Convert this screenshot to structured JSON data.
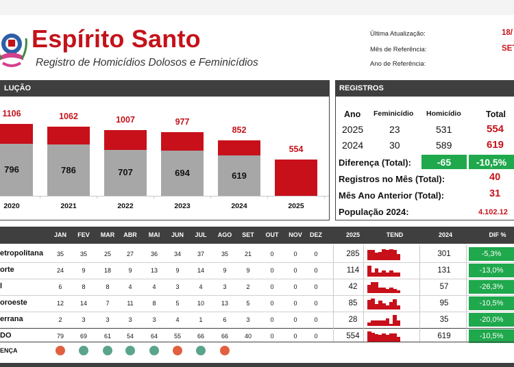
{
  "header": {
    "title": "Espírito Santo",
    "subtitle": "Registro de Homicídios Dolosos e Feminicídios",
    "meta": [
      {
        "label": "Última Atualização:",
        "value": "18/"
      },
      {
        "label": "Mês de Referência:",
        "value": "SET"
      },
      {
        "label": "Ano de Referência:",
        "value": ""
      }
    ]
  },
  "evolution": {
    "panel_title": "LUÇÃO",
    "chart_data": {
      "type": "bar",
      "categories": [
        "2020",
        "2021",
        "2022",
        "2023",
        "2024",
        "2025"
      ],
      "series": [
        {
          "name": "",
          "values": [
            796,
            786,
            707,
            694,
            619,
            null
          ]
        },
        {
          "name": "",
          "values": [
            310,
            276,
            300,
            283,
            233,
            554
          ]
        }
      ],
      "totals": [
        "1106",
        "1062",
        "1007",
        "977",
        "852",
        "554"
      ],
      "inner_labels": [
        "796",
        "786",
        "707",
        "694",
        "619",
        ""
      ],
      "ylim": [
        0,
        1150
      ],
      "colors": {
        "lower": "#a7a7a7",
        "upper": "#c8101a"
      }
    }
  },
  "registros": {
    "panel_title": "REGISTROS",
    "headers": [
      "Ano",
      "Feminicídio",
      "Homicídio",
      "Total"
    ],
    "rows": [
      {
        "ano": "2025",
        "fem": "23",
        "hom": "531",
        "total": "554"
      },
      {
        "ano": "2024",
        "fem": "30",
        "hom": "589",
        "total": "619"
      }
    ],
    "diferenca_label": "Diferença (Total):",
    "diferenca_abs": "-65",
    "diferenca_pct": "-10,5%",
    "mes_label": "Registros no Mês (Total):",
    "mes_value": "40",
    "mes_ant_label": "Mês Ano Anterior (Total):",
    "mes_ant_value": "31",
    "pop_label": "População 2024:",
    "pop_value": "4.102.12"
  },
  "table": {
    "months": [
      "JAN",
      "FEV",
      "MAR",
      "ABR",
      "MAI",
      "JUN",
      "JUL",
      "AGO",
      "SET",
      "OUT",
      "NOV",
      "DEZ"
    ],
    "col_2025": "2025",
    "col_tend": "TEND",
    "col_2024": "2024",
    "col_dif": "DIF %",
    "rows": [
      {
        "region": "etropolitana",
        "values": [
          "35",
          "35",
          "25",
          "27",
          "36",
          "34",
          "37",
          "35",
          "21",
          "0",
          "0",
          "0"
        ],
        "y2025": "285",
        "y2024": "301",
        "dif": "-5,3%",
        "spark": [
          35,
          35,
          25,
          27,
          36,
          34,
          37,
          35,
          21
        ]
      },
      {
        "region": "orte",
        "values": [
          "24",
          "9",
          "18",
          "9",
          "13",
          "9",
          "14",
          "9",
          "9",
          "0",
          "0",
          "0"
        ],
        "y2025": "114",
        "y2024": "131",
        "dif": "-13,0%",
        "spark": [
          24,
          9,
          18,
          9,
          13,
          9,
          14,
          9,
          9
        ]
      },
      {
        "region": "l",
        "values": [
          "6",
          "8",
          "8",
          "4",
          "4",
          "3",
          "4",
          "3",
          "2",
          "0",
          "0",
          "0"
        ],
        "y2025": "42",
        "y2024": "57",
        "dif": "-26,3%",
        "spark": [
          6,
          8,
          8,
          4,
          4,
          3,
          4,
          3,
          2
        ]
      },
      {
        "region": "oroeste",
        "values": [
          "12",
          "14",
          "7",
          "11",
          "8",
          "5",
          "10",
          "13",
          "5",
          "0",
          "0",
          "0"
        ],
        "y2025": "85",
        "y2024": "95",
        "dif": "-10,5%",
        "spark": [
          12,
          14,
          7,
          11,
          8,
          5,
          10,
          13,
          5
        ]
      },
      {
        "region": "errana",
        "values": [
          "2",
          "3",
          "3",
          "3",
          "3",
          "4",
          "1",
          "6",
          "3",
          "0",
          "0",
          "0"
        ],
        "y2025": "28",
        "y2024": "35",
        "dif": "-20,0%",
        "spark": [
          2,
          3,
          3,
          3,
          3,
          4,
          1,
          6,
          3
        ]
      },
      {
        "region": "DO",
        "values": [
          "79",
          "69",
          "61",
          "54",
          "64",
          "55",
          "66",
          "66",
          "40",
          "0",
          "0",
          "0"
        ],
        "y2025": "554",
        "y2024": "619",
        "dif": "-10,5%",
        "spark": [
          79,
          69,
          61,
          54,
          64,
          55,
          66,
          66,
          40
        ]
      }
    ],
    "diff_label": "ENÇA",
    "diff_dots": [
      {
        "status": "up",
        "color": "#e0603f"
      },
      {
        "status": "down",
        "color": "#5aa58a"
      },
      {
        "status": "down",
        "color": "#5aa58a"
      },
      {
        "status": "down",
        "color": "#5aa58a"
      },
      {
        "status": "down",
        "color": "#5aa58a"
      },
      {
        "status": "up",
        "color": "#e0603f"
      },
      {
        "status": "down",
        "color": "#5aa58a"
      },
      {
        "status": "up",
        "color": "#e0603f"
      }
    ]
  },
  "colors": {
    "accent": "#c4121a",
    "dark": "#3f3f3f",
    "green": "#1fa84c",
    "grey": "#a7a7a7"
  }
}
